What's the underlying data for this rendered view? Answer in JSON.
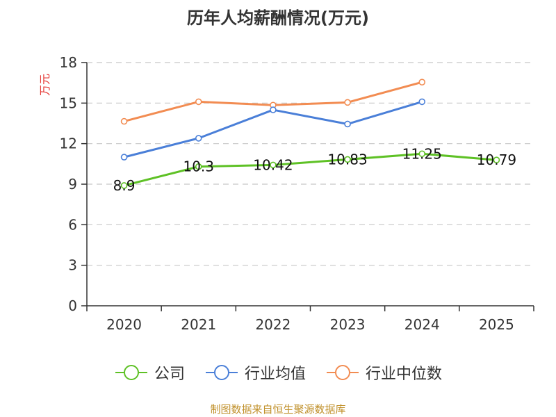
{
  "chart_data": {
    "type": "line",
    "title": "历年人均薪酬情况(万元)",
    "ylabel": "万元",
    "xlabel": "",
    "categories": [
      "2020",
      "2021",
      "2022",
      "2023",
      "2024",
      "2025"
    ],
    "ylim": [
      0,
      18
    ],
    "yticks": [
      0,
      3,
      6,
      9,
      12,
      15,
      18
    ],
    "grid": true,
    "legend_position": "bottom",
    "series": [
      {
        "name": "公司",
        "color": "#5ec125",
        "values": [
          8.9,
          10.3,
          10.42,
          10.83,
          11.25,
          10.79
        ],
        "labels": [
          "8.9",
          "10.3",
          "10.42",
          "10.83",
          "11.25",
          "10.79"
        ]
      },
      {
        "name": "行业均值",
        "color": "#4a7fd8",
        "values": [
          11.0,
          12.4,
          14.5,
          13.45,
          15.1,
          null
        ]
      },
      {
        "name": "行业中位数",
        "color": "#f28c52",
        "values": [
          13.65,
          15.1,
          14.85,
          15.05,
          16.55,
          null
        ]
      }
    ]
  },
  "source": "制图数据来自恒生聚源数据库"
}
